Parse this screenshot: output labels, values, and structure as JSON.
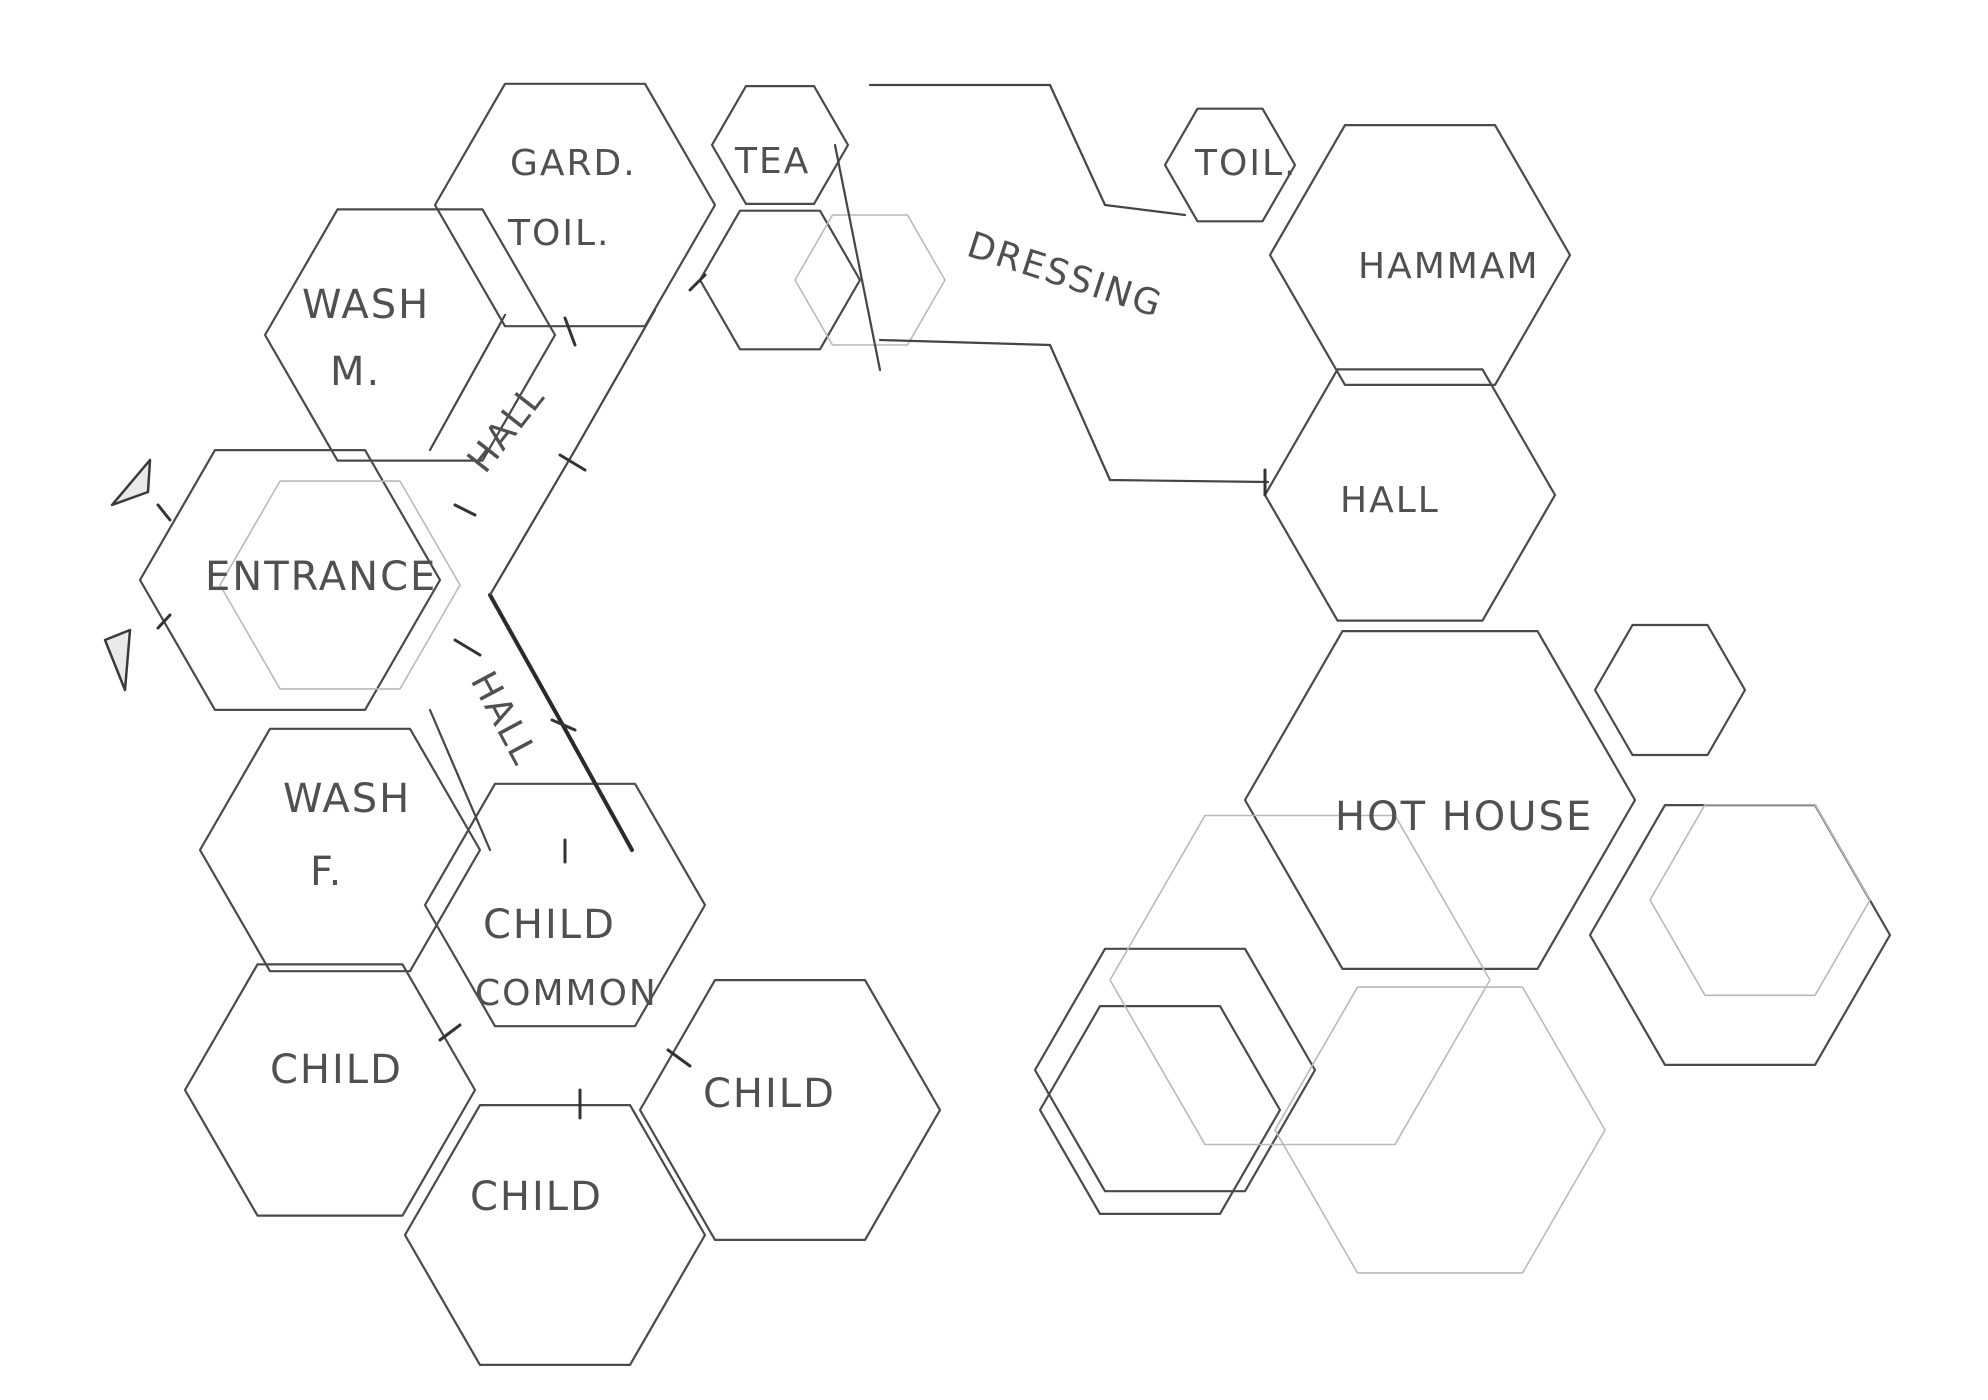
{
  "rooms": {
    "gard_toil_1": "GARD.",
    "gard_toil_2": "TOIL.",
    "tea": "TEA",
    "dressing": "DRESSING",
    "toil": "TOIL.",
    "hammam": "HAMMAM",
    "wash_m_1": "WASH",
    "wash_m_2": "M.",
    "hall_upper": "HALL",
    "hall_right": "HALL",
    "entrance": "ENTRANCE",
    "hall_lower": "HALL",
    "wash_f_1": "WASH",
    "wash_f_2": "F.",
    "child_common_1": "CHILD",
    "child_common_2": "COMMON",
    "child_left": "CHILD",
    "child_right": "CHILD",
    "child_bottom": "CHILD",
    "hot_house": "HOT HOUSE"
  }
}
